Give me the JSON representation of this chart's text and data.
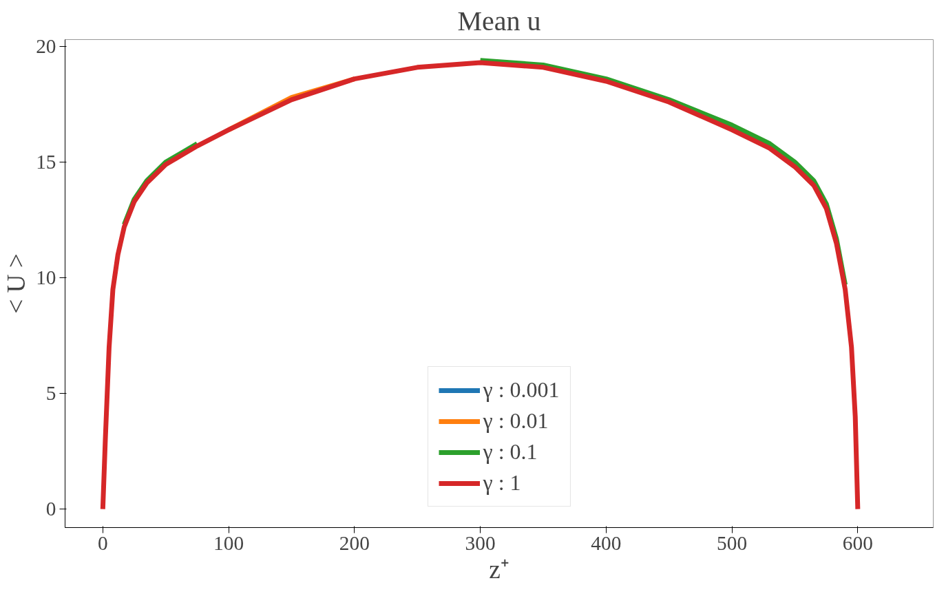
{
  "chart_data": {
    "type": "line",
    "title": "Mean u",
    "xlabel": "z⁺",
    "ylabel": "< U >",
    "xlim": [
      -30,
      660
    ],
    "ylim": [
      -0.8,
      20.3
    ],
    "xticks": [
      0,
      100,
      200,
      300,
      400,
      500,
      600
    ],
    "yticks": [
      0,
      5,
      10,
      15,
      20
    ],
    "grid": false,
    "legend": "bottom",
    "line_style": "solid",
    "marker": "none",
    "x": [
      0,
      2,
      5,
      8,
      12,
      17,
      25,
      35,
      50,
      75,
      100,
      150,
      200,
      250,
      300,
      350,
      400,
      450,
      500,
      530,
      550,
      565,
      575,
      583,
      590,
      595,
      598,
      600
    ],
    "series": [
      {
        "name": "γ : 0.001",
        "color": "#1f77b4",
        "values": [
          null,
          null,
          null,
          null,
          null,
          null,
          null,
          null,
          null,
          null,
          null,
          null,
          null,
          null,
          null,
          null,
          null,
          null,
          null,
          null,
          null,
          null,
          null,
          null,
          null,
          null,
          null,
          null
        ]
      },
      {
        "name": "γ : 0.01",
        "color": "#ff7f0e",
        "values": [
          null,
          null,
          null,
          null,
          null,
          null,
          null,
          null,
          null,
          null,
          16.4,
          17.8,
          18.6,
          null,
          null,
          null,
          null,
          null,
          null,
          null,
          null,
          null,
          null,
          null,
          null,
          null,
          null,
          null
        ]
      },
      {
        "name": "γ : 0.1",
        "color": "#2ca02c",
        "values": [
          null,
          null,
          null,
          null,
          null,
          12.3,
          13.4,
          14.2,
          15.0,
          15.8,
          null,
          null,
          null,
          null,
          19.4,
          19.2,
          18.6,
          17.7,
          16.6,
          15.8,
          15.0,
          14.2,
          13.2,
          11.7,
          9.7,
          null,
          null,
          null
        ]
      },
      {
        "name": "γ : 1",
        "color": "#d62728",
        "values": [
          0,
          3,
          7,
          9.5,
          11,
          12.2,
          13.3,
          14.1,
          14.9,
          15.7,
          16.4,
          17.7,
          18.6,
          19.1,
          19.3,
          19.1,
          18.5,
          17.6,
          16.4,
          15.6,
          14.8,
          14.0,
          13.0,
          11.5,
          9.5,
          7.0,
          4.0,
          0
        ]
      }
    ]
  }
}
